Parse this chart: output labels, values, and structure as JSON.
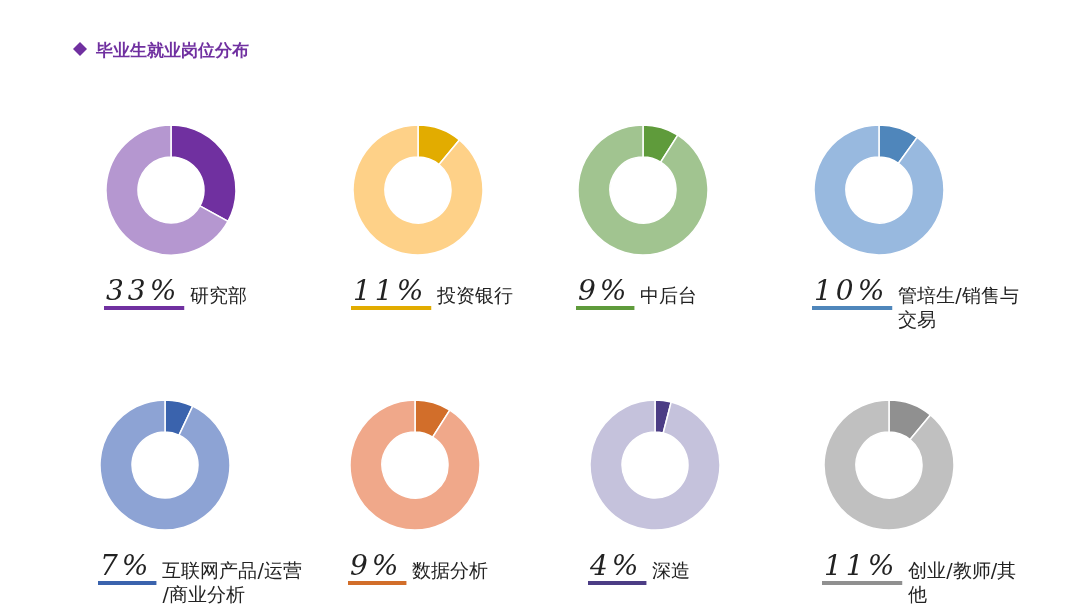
{
  "chart_data": [
    {
      "type": "donut",
      "title": "毕业生就业岗位分布",
      "categories": [
        "研究部",
        null
      ],
      "values": [
        33,
        67
      ],
      "colors": [
        "#7030a0",
        "#b597d0"
      ],
      "value_labels": [
        "33%",
        null
      ]
    },
    {
      "type": "donut",
      "categories": [
        "投资银行",
        null
      ],
      "values": [
        11,
        89
      ],
      "colors": [
        "#e2ac00",
        "#fed188"
      ],
      "value_labels": [
        "11%",
        null
      ]
    },
    {
      "type": "donut",
      "categories": [
        "中后台",
        null
      ],
      "values": [
        9,
        91
      ],
      "colors": [
        "#5f9b3b",
        "#a1c490"
      ],
      "value_labels": [
        "9%",
        null
      ]
    },
    {
      "type": "donut",
      "categories": [
        "管培生/销售与交易",
        null
      ],
      "values": [
        10,
        90
      ],
      "colors": [
        "#4f86bb",
        "#98b9df"
      ],
      "value_labels": [
        "10%",
        null
      ]
    },
    {
      "type": "donut",
      "categories": [
        "互联网产品/运营/商业分析",
        null
      ],
      "values": [
        7,
        93
      ],
      "colors": [
        "#3a63ad",
        "#8da3d4"
      ],
      "value_labels": [
        "7%",
        null
      ]
    },
    {
      "type": "donut",
      "categories": [
        "数据分析",
        null
      ],
      "values": [
        9,
        91
      ],
      "colors": [
        "#d26e2a",
        "#f0a88a"
      ],
      "value_labels": [
        "9%",
        null
      ]
    },
    {
      "type": "donut",
      "categories": [
        "深造",
        null
      ],
      "values": [
        4,
        96
      ],
      "colors": [
        "#4c3d85",
        "#c5c2dc"
      ],
      "value_labels": [
        "4%",
        null
      ]
    },
    {
      "type": "donut",
      "categories": [
        "创业/教师/其他",
        null
      ],
      "values": [
        11,
        89
      ],
      "colors": [
        "#909090",
        "#c0c0c0"
      ],
      "value_labels": [
        "11%",
        null
      ]
    }
  ]
}
